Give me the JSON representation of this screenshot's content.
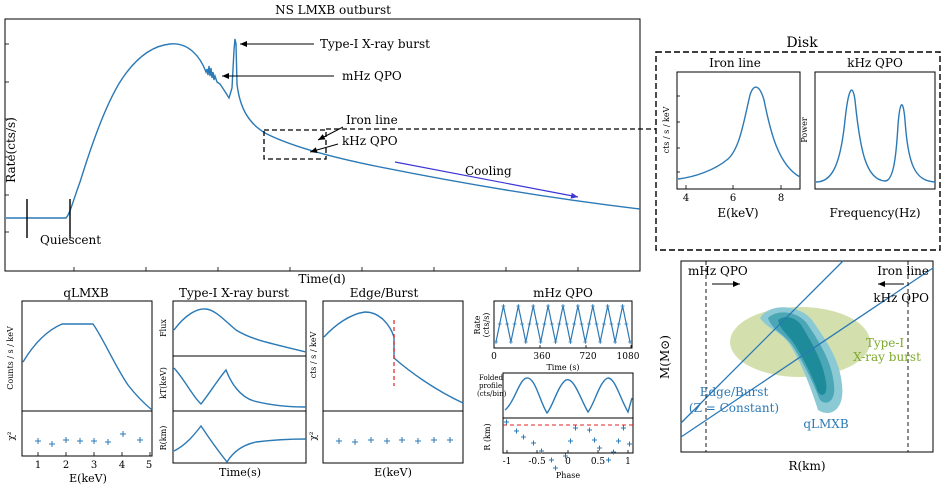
{
  "main": {
    "title": "NS LMXB outburst",
    "ylabel": "Rate(cts/s)",
    "xlabel": "Time(d)",
    "annotations": {
      "burst": "Type-I X-ray burst",
      "mhz": "mHz QPO",
      "iron": "Iron line",
      "khz": "kHz QPO",
      "cooling": "Cooling",
      "quiescent": "Quiescent"
    }
  },
  "disk": {
    "title": "Disk",
    "iron": {
      "title": "Iron line",
      "xlabel": "E(keV)",
      "ylabel": "cts / s / keV",
      "xticks": [
        "4",
        "6",
        "8"
      ]
    },
    "khz": {
      "title": "kHz QPO",
      "xlabel": "Frequency(Hz)",
      "ylabel": "Power"
    }
  },
  "mr": {
    "ylabel": "M(M⊙)",
    "xlabel": "R(km)",
    "labels": {
      "mhz": "mHz QPO",
      "iron": "Iron line",
      "khz": "kHz QPO",
      "edge1": "Edge/Burst",
      "edge2": "(Z = Constant)",
      "typei1": "Type-I",
      "typei2": "X-ray burst",
      "qlmxb": "qLMXB"
    }
  },
  "qlmxb": {
    "title": "qLMXB",
    "ylabel": "Counts / s / keV",
    "chi": "χ²",
    "xlabel": "E(keV)",
    "xticks": [
      "1",
      "2",
      "3",
      "4",
      "5"
    ]
  },
  "burst": {
    "title": "Type-I X-ray burst",
    "ylabels": [
      "Flux",
      "kT(keV)",
      "R(km)"
    ],
    "xlabel": "Time(s)"
  },
  "edge": {
    "title": "Edge/Burst",
    "ylabel": "cts / s / keV",
    "chi": "χ²",
    "xlabel": "E(keV)"
  },
  "mhzqpo": {
    "title": "mHz QPO",
    "ylabel1": "Rate",
    "ylabel2": "(cts/s)",
    "xlabel": "Time (s)",
    "xticks": [
      "0",
      "360",
      "720",
      "1080"
    ],
    "flabel1": "Folded",
    "flabel2": "profile",
    "flabel3": "(cts/bin)",
    "rlabel": "R (km)",
    "plabel": "Phase",
    "pticks": [
      "-1",
      "-0.5",
      "0",
      "0.5",
      "1"
    ]
  },
  "colors": {
    "curve": "#2b79b5",
    "cooling_arrow": "#3d35d6",
    "green": "#7ea82e",
    "edge_line": "#e02020"
  }
}
